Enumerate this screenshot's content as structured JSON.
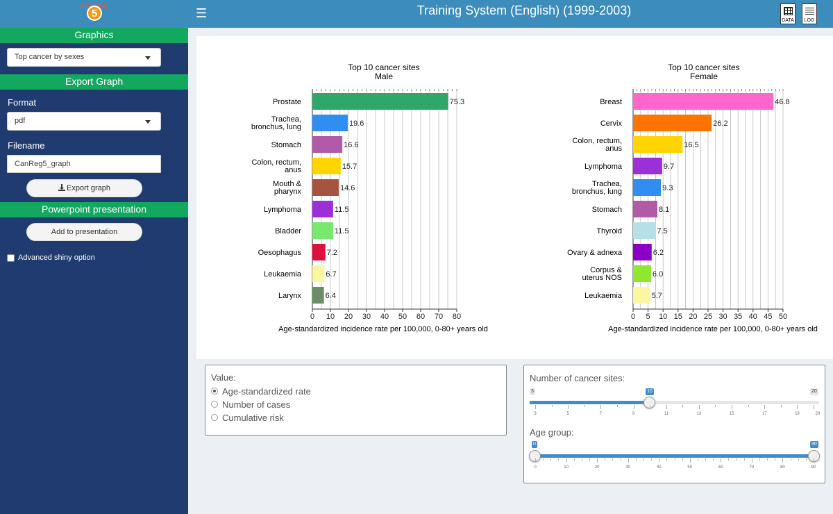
{
  "header": {
    "logo_text": "CanReg",
    "logo_number": "5",
    "title": "Training System (English) (1999-2003)",
    "data_icon_label": "DATA",
    "log_icon_label": "LOG"
  },
  "sidebar": {
    "graphics_header": "Graphics",
    "graph_select_value": "Top cancer by sexes",
    "export_header": "Export Graph",
    "format_label": "Format",
    "format_value": "pdf",
    "filename_label": "Filename",
    "filename_value": "CanReg5_graph",
    "export_button": "Export graph",
    "ppt_header": "Powerpoint presentation",
    "add_button": "Add to presentation",
    "advanced_label": "Advanced shiny option"
  },
  "chart_data": [
    {
      "type": "bar",
      "orientation": "horizontal",
      "title": "Top 10 cancer sites",
      "subtitle": "Male",
      "xlabel": "Age-standardized incidence rate per 100,000, 0-80+ years old",
      "xlim": [
        0,
        80
      ],
      "xticks": [
        0,
        10,
        20,
        30,
        40,
        50,
        60,
        70,
        80
      ],
      "categories": [
        [
          "Prostate"
        ],
        [
          "Trachea,",
          "bronchus, lung"
        ],
        [
          "Stomach"
        ],
        [
          "Colon, rectum,",
          "anus"
        ],
        [
          "Mouth &",
          "pharynx"
        ],
        [
          "Lymphoma"
        ],
        [
          "Bladder"
        ],
        [
          "Oesophagus"
        ],
        [
          "Leukaemia"
        ],
        [
          "Larynx"
        ]
      ],
      "values": [
        75.3,
        19.6,
        16.6,
        15.7,
        14.6,
        11.5,
        11.5,
        7.2,
        6.7,
        6.4
      ],
      "value_labels": [
        "75.3",
        "19.6",
        "16.6",
        "15.7",
        "14.6",
        "11.5",
        "11.5",
        "7.2",
        "6.7",
        "6.4"
      ],
      "colors": [
        "#2fa66a",
        "#2f8ef0",
        "#b05aa8",
        "#ffd400",
        "#a65340",
        "#9b30d9",
        "#78e86e",
        "#e0103c",
        "#fbf7a0",
        "#6c8c6a"
      ]
    },
    {
      "type": "bar",
      "orientation": "horizontal",
      "title": "Top 10 cancer sites",
      "subtitle": "Female",
      "xlabel": "Age-standardized incidence rate per 100,000, 0-80+ years old",
      "xlim": [
        0,
        50
      ],
      "xticks": [
        0,
        5,
        10,
        15,
        20,
        25,
        30,
        35,
        40,
        45,
        50
      ],
      "categories": [
        [
          "Breast"
        ],
        [
          "Cervix"
        ],
        [
          "Colon, rectum,",
          "anus"
        ],
        [
          "Lymphoma"
        ],
        [
          "Trachea,",
          "bronchus, lung"
        ],
        [
          "Stomach"
        ],
        [
          "Thyroid"
        ],
        [
          "Ovary & adnexa"
        ],
        [
          "Corpus &",
          "uterus NOS"
        ],
        [
          "Leukaemia"
        ]
      ],
      "values": [
        46.8,
        26.2,
        16.5,
        9.7,
        9.3,
        8.1,
        7.5,
        6.2,
        6.0,
        5.7
      ],
      "value_labels": [
        "46.8",
        "26.2",
        "16.5",
        "9.7",
        "9.3",
        "8.1",
        "7.5",
        "6.2",
        "6.0",
        "5.7"
      ],
      "colors": [
        "#ff66cc",
        "#ff7400",
        "#ffd400",
        "#9b30d9",
        "#2f8ef0",
        "#b05aa8",
        "#b7dfe8",
        "#8a00c8",
        "#8ee830",
        "#fbf7a0"
      ]
    }
  ],
  "value_box": {
    "label": "Value:",
    "options": [
      "Age-standardized rate",
      "Number of cases",
      "Cumulative risk"
    ],
    "selected": 0
  },
  "sites_slider": {
    "label": "Number of cancer sites:",
    "min": 3,
    "max": 20,
    "value": 10,
    "min_label": "3",
    "max_label": "20",
    "value_label": "10",
    "tick_labels": [
      "3",
      "5",
      "7",
      "9",
      "11",
      "13",
      "15",
      "17",
      "19",
      "20"
    ]
  },
  "age_slider": {
    "label": "Age group:",
    "min": 0,
    "max": 90,
    "low": 0,
    "high": 90,
    "low_label": "0",
    "high_label": "90",
    "tick_labels": [
      "0",
      "10",
      "20",
      "30",
      "40",
      "50",
      "60",
      "70",
      "80",
      "90"
    ]
  }
}
